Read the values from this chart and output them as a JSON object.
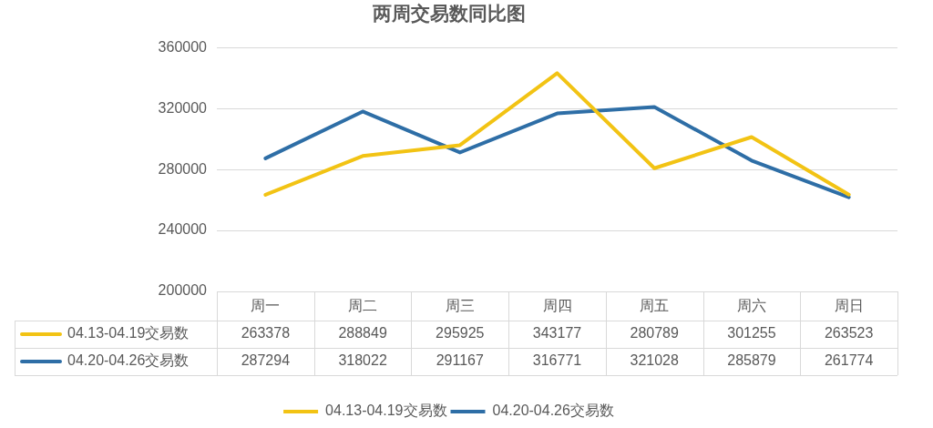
{
  "chart_data": {
    "type": "line",
    "title": "两周交易数同比图",
    "categories": [
      "周一",
      "周二",
      "周三",
      "周四",
      "周五",
      "周六",
      "周日"
    ],
    "series": [
      {
        "name": "04.13-04.19交易数",
        "color": "#f2c314",
        "values": [
          263378,
          288849,
          295925,
          343177,
          280789,
          301255,
          263523
        ]
      },
      {
        "name": "04.20-04.26交易数",
        "color": "#2e6ea6",
        "values": [
          287294,
          318022,
          291167,
          316771,
          321028,
          285879,
          261774
        ]
      }
    ],
    "ylim": [
      200000,
      360000
    ],
    "yticks": [
      200000,
      240000,
      280000,
      320000,
      360000
    ],
    "grid": "y",
    "legend": "bottom",
    "marker": "none",
    "data_labels": true
  }
}
